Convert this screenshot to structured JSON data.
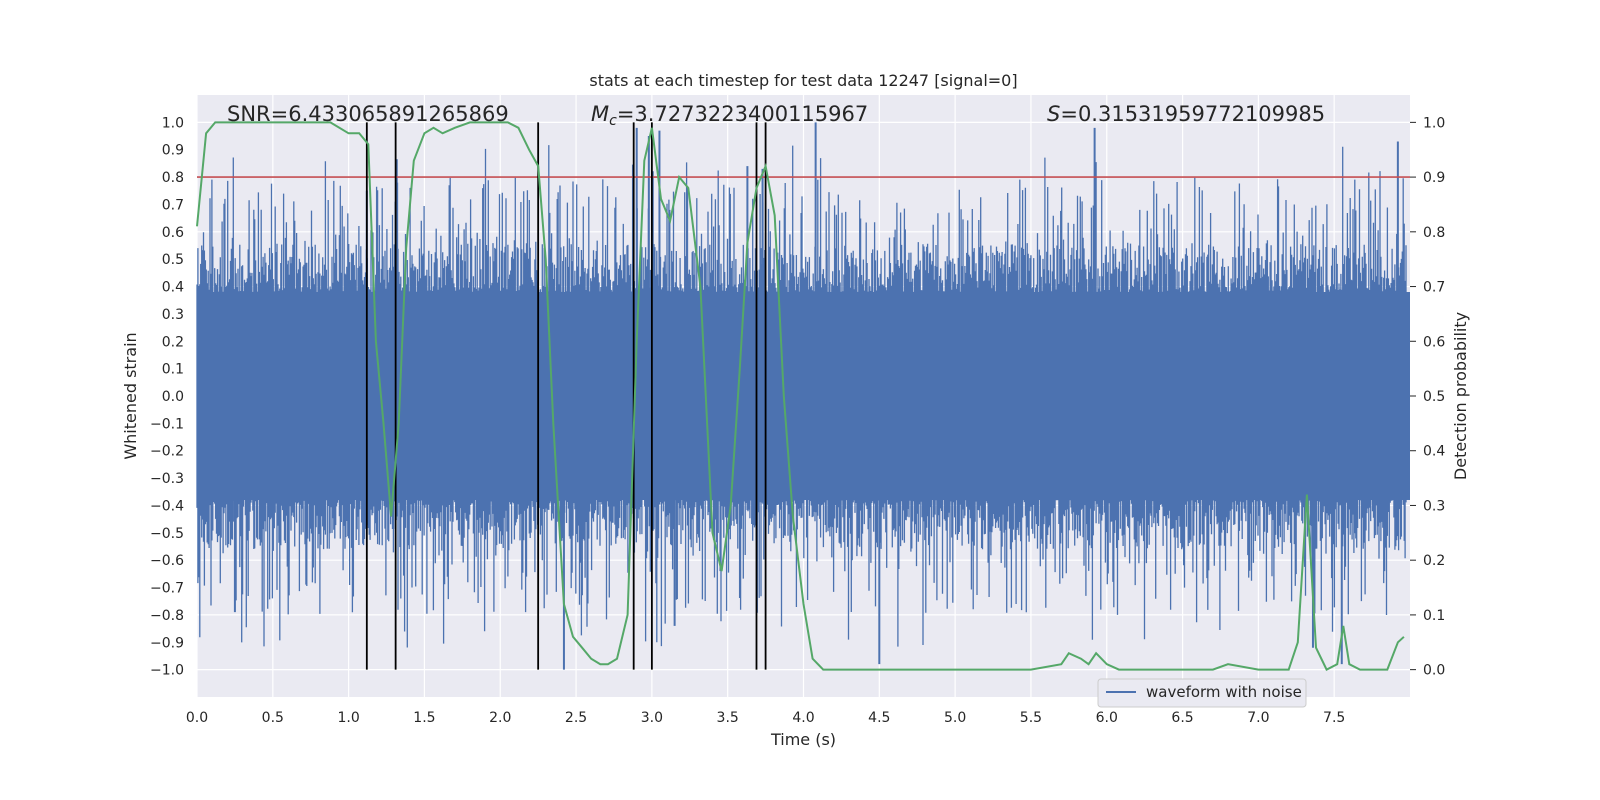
{
  "chart_data": {
    "type": "line",
    "title": "stats at each timestep for test data 12247 [signal=0]",
    "xlabel": "Time (s)",
    "ylabel": "Whitened strain",
    "y2label": "Detection probability",
    "xlim": [
      0.0,
      8.0
    ],
    "ylim": [
      -1.1,
      1.1
    ],
    "y2lim": [
      -0.05,
      1.05
    ],
    "x_ticks": [
      0.0,
      0.5,
      1.0,
      1.5,
      2.0,
      2.5,
      3.0,
      3.5,
      4.0,
      4.5,
      5.0,
      5.5,
      6.0,
      6.5,
      7.0,
      7.5
    ],
    "x_tick_labels": [
      "0.0",
      "0.5",
      "1.0",
      "1.5",
      "2.0",
      "2.5",
      "3.0",
      "3.5",
      "4.0",
      "4.5",
      "5.0",
      "5.5",
      "6.0",
      "6.5",
      "7.0",
      "7.5"
    ],
    "y_ticks": [
      -1.0,
      -0.9,
      -0.8,
      -0.7,
      -0.6,
      -0.5,
      -0.4,
      -0.3,
      -0.2,
      -0.1,
      0.0,
      0.1,
      0.2,
      0.3,
      0.4,
      0.5,
      0.6,
      0.7,
      0.8,
      0.9,
      1.0
    ],
    "y_tick_labels": [
      "−1.0",
      "−0.9",
      "−0.8",
      "−0.7",
      "−0.6",
      "−0.5",
      "−0.4",
      "−0.3",
      "−0.2",
      "−0.1",
      "0.0",
      "0.1",
      "0.2",
      "0.3",
      "0.4",
      "0.5",
      "0.6",
      "0.7",
      "0.8",
      "0.9",
      "1.0"
    ],
    "y2_ticks": [
      0.0,
      0.1,
      0.2,
      0.3,
      0.4,
      0.5,
      0.6,
      0.7,
      0.8,
      0.9,
      1.0
    ],
    "y2_tick_labels": [
      "0.0",
      "0.1",
      "0.2",
      "0.3",
      "0.4",
      "0.5",
      "0.6",
      "0.7",
      "0.8",
      "0.9",
      "1.0"
    ],
    "grid": true,
    "legend": {
      "entries": [
        "waveform with noise"
      ],
      "placement": "lower-right"
    },
    "annotations": {
      "snr": "SNR=6.433065891265869",
      "mc_symbol": "M",
      "mc_sub": "c",
      "mc_value": "=3.7273223400115967",
      "s_symbol": "S",
      "s_value": "=0.31531959772109985"
    },
    "threshold_y2": 0.9,
    "vertical_lines_x": [
      1.12,
      1.31,
      2.25,
      2.88,
      3.0,
      3.69,
      3.75
    ],
    "waveform": {
      "name": "waveform with noise",
      "color": "#4c72b0",
      "envelope_x": [
        0.0,
        0.5,
        1.0,
        1.5,
        2.0,
        2.5,
        3.0,
        3.5,
        4.0,
        4.5,
        5.0,
        5.5,
        6.0,
        6.5,
        7.0,
        7.5,
        8.0
      ],
      "dense_band": [
        0.38,
        0.38,
        0.38,
        0.38,
        0.38,
        0.38,
        0.38,
        0.38,
        0.38,
        0.38,
        0.38,
        0.38,
        0.38,
        0.38,
        0.38,
        0.38,
        0.38
      ],
      "spike_peaks": [
        {
          "x": 1.12,
          "y": 0.75
        },
        {
          "x": 1.32,
          "y": 0.78
        },
        {
          "x": 2.42,
          "y": -1.0
        },
        {
          "x": 2.9,
          "y": 0.98
        },
        {
          "x": 2.98,
          "y": 0.95
        },
        {
          "x": 3.05,
          "y": 0.97
        },
        {
          "x": 3.63,
          "y": 0.84
        },
        {
          "x": 3.73,
          "y": 0.83
        },
        {
          "x": 4.08,
          "y": 1.0
        },
        {
          "x": 4.5,
          "y": -0.98
        },
        {
          "x": 5.92,
          "y": 0.98
        },
        {
          "x": 7.92,
          "y": 0.93
        },
        {
          "x": 7.55,
          "y": -0.98
        },
        {
          "x": 7.36,
          "y": -0.92
        },
        {
          "x": 3.15,
          "y": -0.84
        },
        {
          "x": 0.25,
          "y": -0.79
        }
      ]
    },
    "probability": {
      "color": "#55a868",
      "x": [
        0.0,
        0.06,
        0.12,
        0.3,
        0.6,
        0.88,
        1.0,
        1.07,
        1.13,
        1.18,
        1.23,
        1.28,
        1.33,
        1.38,
        1.43,
        1.5,
        1.56,
        1.62,
        1.7,
        1.8,
        1.95,
        2.05,
        2.12,
        2.19,
        2.25,
        2.3,
        2.35,
        2.42,
        2.48,
        2.54,
        2.6,
        2.66,
        2.71,
        2.77,
        2.84,
        2.9,
        2.95,
        3.0,
        3.06,
        3.12,
        3.18,
        3.24,
        3.32,
        3.4,
        3.46,
        3.52,
        3.58,
        3.63,
        3.69,
        3.75,
        3.81,
        3.87,
        3.93,
        4.0,
        4.06,
        4.13,
        4.4,
        4.8,
        5.2,
        5.5,
        5.7,
        5.75,
        5.83,
        5.88,
        5.93,
        6.0,
        6.08,
        6.4,
        6.7,
        6.8,
        7.0,
        7.2,
        7.26,
        7.32,
        7.38,
        7.45,
        7.52,
        7.56,
        7.6,
        7.67,
        7.85,
        7.92,
        7.96
      ],
      "y": [
        0.81,
        0.98,
        1.0,
        1.0,
        1.0,
        1.0,
        0.98,
        0.98,
        0.96,
        0.6,
        0.45,
        0.28,
        0.45,
        0.77,
        0.93,
        0.98,
        0.99,
        0.98,
        0.99,
        1.0,
        1.0,
        1.0,
        0.99,
        0.95,
        0.92,
        0.75,
        0.45,
        0.12,
        0.06,
        0.04,
        0.02,
        0.01,
        0.01,
        0.02,
        0.1,
        0.6,
        0.93,
        0.99,
        0.86,
        0.82,
        0.9,
        0.88,
        0.7,
        0.25,
        0.18,
        0.3,
        0.55,
        0.78,
        0.88,
        0.92,
        0.83,
        0.5,
        0.28,
        0.12,
        0.02,
        0.0,
        0.0,
        0.0,
        0.0,
        0.0,
        0.01,
        0.03,
        0.02,
        0.01,
        0.03,
        0.01,
        0.0,
        0.0,
        0.0,
        0.01,
        0.0,
        0.0,
        0.05,
        0.32,
        0.04,
        0.0,
        0.01,
        0.08,
        0.01,
        0.0,
        0.0,
        0.05,
        0.06
      ]
    },
    "colors": {
      "background": "#eaeaf2",
      "grid": "#ffffff",
      "threshold": "#c44e52",
      "vlines": "#000000"
    }
  }
}
